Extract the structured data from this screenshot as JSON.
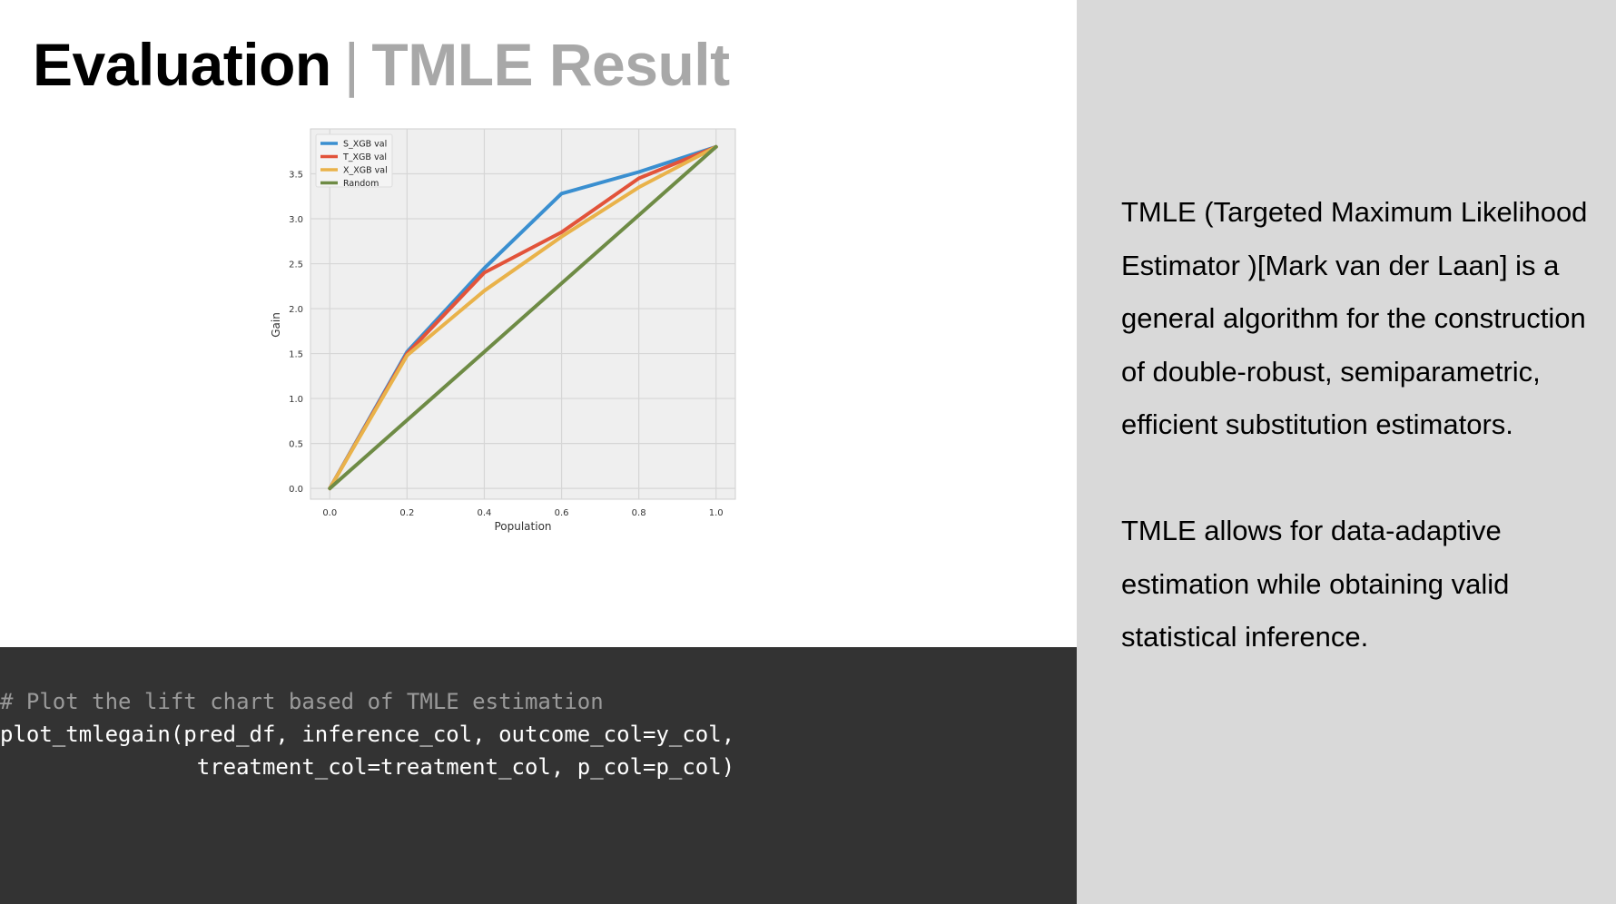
{
  "slide": {
    "title_main": "Evaluation",
    "title_separator": "|",
    "title_sub": "TMLE Result"
  },
  "chart_data": {
    "type": "line",
    "xlabel": "Population",
    "ylabel": "Gain",
    "xlim": [
      -0.05,
      1.05
    ],
    "ylim": [
      -0.12,
      4.0
    ],
    "xticks": [
      0.0,
      0.2,
      0.4,
      0.6,
      0.8,
      1.0
    ],
    "xtick_labels": [
      "0.0",
      "0.2",
      "0.4",
      "0.6",
      "0.8",
      "1.0"
    ],
    "yticks": [
      0.0,
      0.5,
      1.0,
      1.5,
      2.0,
      2.5,
      3.0,
      3.5
    ],
    "ytick_labels": [
      "0.0",
      "0.5",
      "1.0",
      "1.5",
      "2.0",
      "2.5",
      "3.0",
      "3.5"
    ],
    "grid": true,
    "legend_position": "top-left",
    "x": [
      0.0,
      0.2,
      0.4,
      0.6,
      0.8,
      1.0
    ],
    "series": [
      {
        "name": "S_XGB val",
        "color": "#3a8fd0",
        "values": [
          0.0,
          1.52,
          2.45,
          3.28,
          3.52,
          3.8
        ]
      },
      {
        "name": "T_XGB val",
        "color": "#e2533a",
        "values": [
          0.0,
          1.5,
          2.4,
          2.85,
          3.45,
          3.8
        ]
      },
      {
        "name": "X_XGB val",
        "color": "#e9b24a",
        "values": [
          0.0,
          1.48,
          2.2,
          2.8,
          3.35,
          3.8
        ]
      },
      {
        "name": "Random",
        "color": "#6e8b45",
        "values": [
          0.0,
          0.76,
          1.52,
          2.28,
          3.04,
          3.8
        ]
      }
    ]
  },
  "code": {
    "comment": "# Plot the lift chart based of TMLE estimation",
    "line1": "plot_tmlegain(pred_df, inference_col, outcome_col=y_col,",
    "line2": "               treatment_col=treatment_col, p_col=p_col)"
  },
  "side": {
    "paragraph1": "TMLE (Targeted Maximum Likelihood Estimator )[Mark van der Laan] is a general algorithm for the construction of double-robust, semiparametric, efficient substitution estimators.",
    "paragraph2": "TMLE allows for data-adaptive estimation while obtaining valid statistical inference."
  }
}
